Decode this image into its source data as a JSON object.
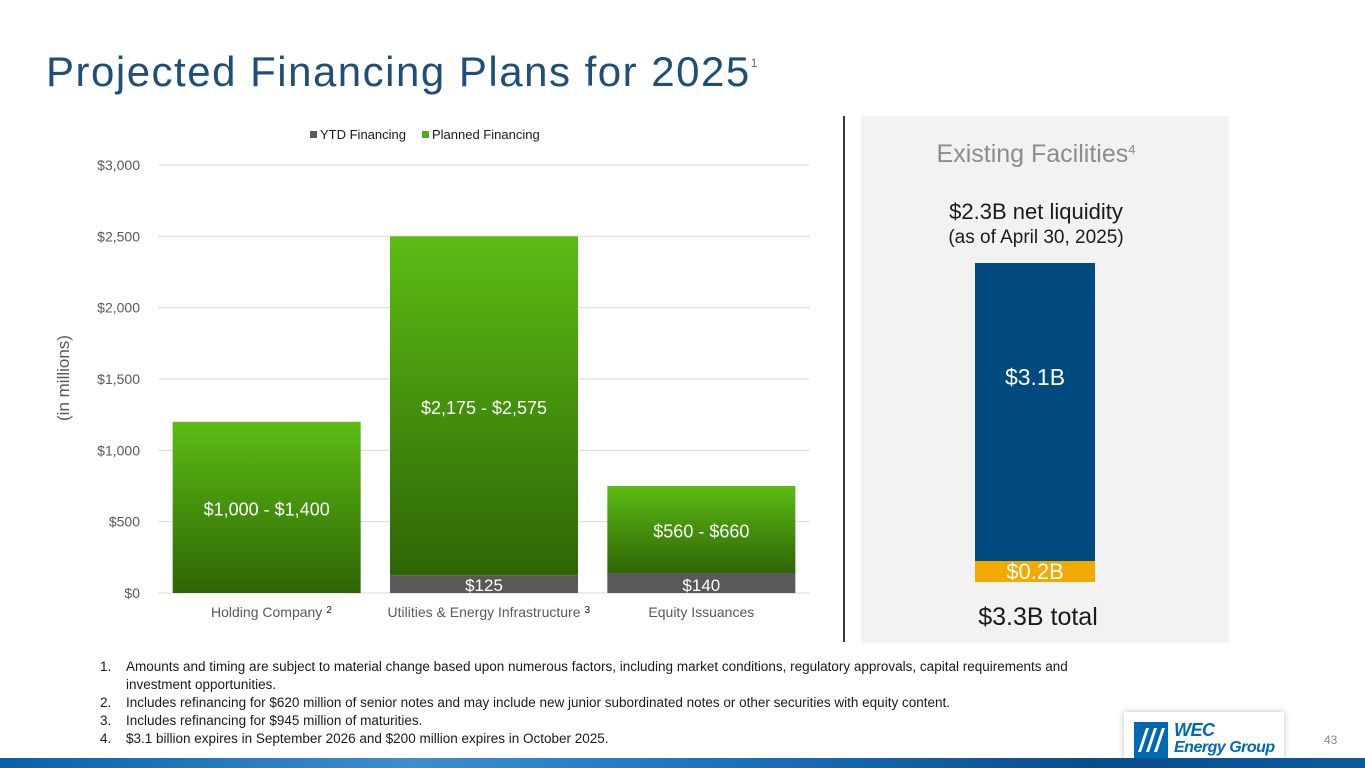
{
  "title": "Projected Financing Plans for 2025",
  "title_sup": "1",
  "chart_data": {
    "type": "bar",
    "stacked": true,
    "categories": [
      "Holding Company",
      "Utilities & Energy Infrastructure",
      "Equity Issuances"
    ],
    "category_superscripts": [
      "2",
      "3",
      ""
    ],
    "series": [
      {
        "name": "YTD Financing",
        "color": "#595959",
        "values": [
          0,
          125,
          140
        ],
        "labels": [
          "",
          "$125",
          "$140"
        ]
      },
      {
        "name": "Planned Financing",
        "color": "#4caf1a",
        "values": [
          1200,
          2375,
          610
        ],
        "labels": [
          "$1,000 - $1,400",
          "$2,175 - $2,575",
          "$560 - $660"
        ]
      }
    ],
    "ylabel": "(in millions)",
    "ylim": [
      0,
      3000
    ],
    "yticks": [
      0,
      500,
      1000,
      1500,
      2000,
      2500,
      3000
    ],
    "ytick_labels": [
      "$0",
      "$500",
      "$1,000",
      "$1,500",
      "$2,000",
      "$2,500",
      "$3,000"
    ],
    "grid": true,
    "legend_position": "top"
  },
  "panel": {
    "title": "Existing Facilities",
    "title_sup": "4",
    "liquidity_line1": "$2.3B net liquidity",
    "liquidity_line2": "(as of April 30, 2025)",
    "segment_top_label": "$3.1B",
    "segment_bottom_label": "$0.2B",
    "total": "$3.3B total",
    "color_top": "#004a80",
    "color_bottom": "#f2a900"
  },
  "footnotes": [
    {
      "num": "1.",
      "text": "Amounts and timing are subject to material change based upon numerous factors, including market conditions, regulatory approvals, capital requirements and investment opportunities."
    },
    {
      "num": "2.",
      "text": "Includes refinancing for $620 million of senior notes and may include new junior subordinated notes or other securities with equity content."
    },
    {
      "num": "3.",
      "text": "Includes refinancing for $945 million of maturities."
    },
    {
      "num": "4.",
      "text": "$3.1 billion expires in September 2026 and $200 million expires in October 2025."
    }
  ],
  "logo": {
    "line1": "WEC",
    "line2": "Energy Group"
  },
  "page_number": "43"
}
